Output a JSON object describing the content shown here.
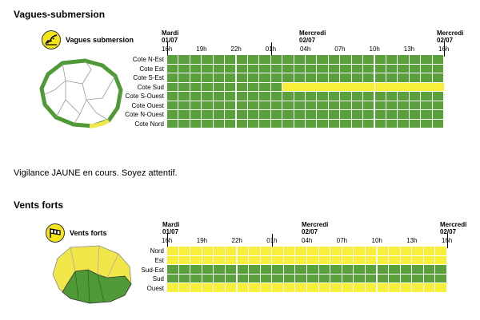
{
  "colors": {
    "green": "#5aa03c",
    "yellow": "#f8ef3a",
    "map_green": "#4f9a36",
    "map_yellow": "#f1e64a"
  },
  "timeline": {
    "day_start": {
      "day": "Mardi",
      "date": "01/07"
    },
    "day_mid": {
      "day": "Mercredi",
      "date": "02/07"
    },
    "day_end": {
      "day": "Mercredi",
      "date": "02/07"
    },
    "ticks": [
      "16h",
      "19h",
      "22h",
      "01h",
      "04h",
      "07h",
      "10h",
      "13h",
      "16h"
    ]
  },
  "section1": {
    "title": "Vagues-submersion",
    "badge_label": "Vagues submersion",
    "badge_icon": "waves-icon",
    "rows": [
      {
        "label": "Cote N-Est",
        "yellow_from_hour": null
      },
      {
        "label": "Cote Est",
        "yellow_from_hour": null
      },
      {
        "label": "Cote S-Est",
        "yellow_from_hour": null
      },
      {
        "label": "Cote Sud",
        "yellow_from_hour": 10
      },
      {
        "label": "Cote S-Ouest",
        "yellow_from_hour": null
      },
      {
        "label": "Cote Ouest",
        "yellow_from_hour": null
      },
      {
        "label": "Cote N-Ouest",
        "yellow_from_hour": null
      },
      {
        "label": "Cote Nord",
        "yellow_from_hour": null
      }
    ]
  },
  "message": "Vigilance JAUNE en cours. Soyez attentif.",
  "section2": {
    "title": "Vents forts",
    "badge_label": "Vents forts",
    "badge_icon": "windsock-icon",
    "rows": [
      {
        "label": "Nord",
        "color": "yellow"
      },
      {
        "label": "Est",
        "color": "yellow"
      },
      {
        "label": "Sud-Est",
        "color": "green"
      },
      {
        "label": "Sud",
        "color": "green"
      },
      {
        "label": "Ouest",
        "color": "yellow"
      }
    ]
  }
}
